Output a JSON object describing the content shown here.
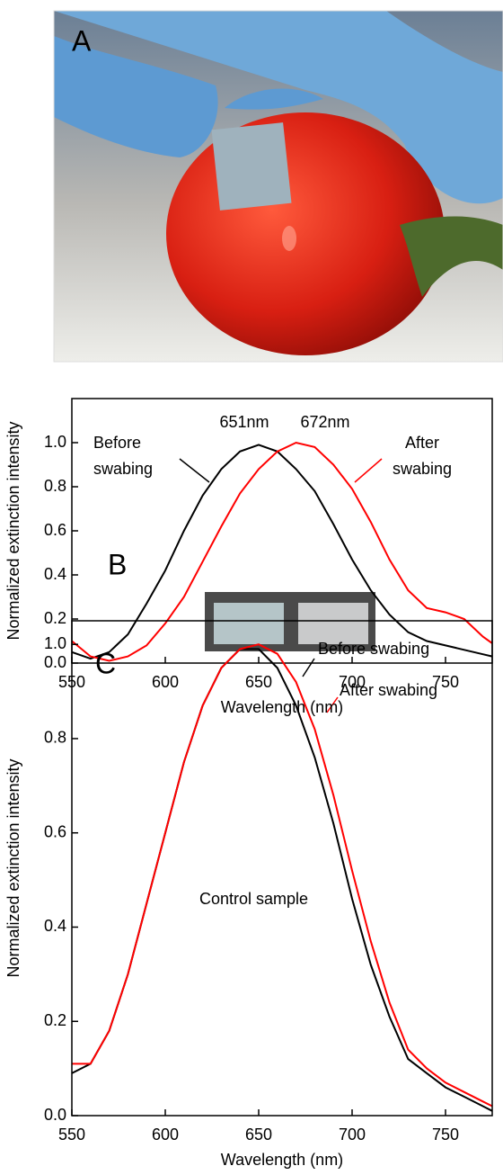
{
  "photo": {
    "label": "A"
  },
  "chart_data": [
    {
      "type": "line",
      "panel_label": "B",
      "xlabel": "Wavelength (nm)",
      "ylabel": "Normalized extinction intensity",
      "x": [
        550,
        560,
        570,
        580,
        590,
        600,
        610,
        620,
        630,
        640,
        650,
        660,
        670,
        680,
        690,
        700,
        710,
        720,
        730,
        740,
        750,
        760,
        770,
        775
      ],
      "series": [
        {
          "name": "Before swabing",
          "color": "#000000",
          "values": [
            0.05,
            0.02,
            0.05,
            0.13,
            0.27,
            0.42,
            0.6,
            0.76,
            0.88,
            0.96,
            0.99,
            0.96,
            0.88,
            0.78,
            0.63,
            0.47,
            0.33,
            0.22,
            0.14,
            0.1,
            0.08,
            0.06,
            0.04,
            0.03
          ]
        },
        {
          "name": "After swabing",
          "color": "#ff0000",
          "values": [
            0.1,
            0.03,
            0.01,
            0.03,
            0.08,
            0.18,
            0.3,
            0.46,
            0.62,
            0.77,
            0.88,
            0.96,
            1.0,
            0.98,
            0.9,
            0.79,
            0.64,
            0.47,
            0.33,
            0.25,
            0.23,
            0.2,
            0.12,
            0.09
          ]
        }
      ],
      "annotations": [
        {
          "text": "651nm",
          "color": "#000000"
        },
        {
          "text": "672nm",
          "color": "#ff0000"
        },
        {
          "text": "Before",
          "color": "#000000"
        },
        {
          "text": "swabing",
          "color": "#000000"
        },
        {
          "text": "After",
          "color": "#ff0000"
        },
        {
          "text": "swabing",
          "color": "#ff0000"
        }
      ],
      "xlim": [
        550,
        775
      ],
      "xticks": [
        550,
        600,
        650,
        700,
        750
      ],
      "ylim": [
        0,
        1.2
      ],
      "yticks": [
        {
          "value": 0,
          "label": "0.0"
        },
        0.2,
        0.4,
        0.6,
        0.8,
        {
          "value": 1,
          "label": "1.0"
        }
      ]
    },
    {
      "type": "line",
      "panel_label": "C",
      "xlabel": "Wavelength (nm)",
      "ylabel": "Normalized extinction intensity",
      "x": [
        550,
        560,
        570,
        580,
        590,
        600,
        610,
        620,
        630,
        640,
        650,
        660,
        670,
        680,
        690,
        700,
        710,
        720,
        730,
        740,
        750,
        760,
        770,
        775
      ],
      "series": [
        {
          "name": "Before swabing",
          "color": "#000000",
          "values": [
            0.09,
            0.11,
            0.18,
            0.3,
            0.45,
            0.6,
            0.75,
            0.87,
            0.95,
            0.99,
            0.99,
            0.95,
            0.87,
            0.76,
            0.62,
            0.46,
            0.32,
            0.21,
            0.12,
            0.09,
            0.06,
            0.04,
            0.02,
            0.01
          ]
        },
        {
          "name": "After swabing",
          "color": "#ff0000",
          "values": [
            0.11,
            0.11,
            0.18,
            0.3,
            0.45,
            0.6,
            0.75,
            0.87,
            0.95,
            0.99,
            1.0,
            0.98,
            0.92,
            0.82,
            0.68,
            0.52,
            0.37,
            0.24,
            0.14,
            0.1,
            0.07,
            0.05,
            0.03,
            0.02
          ]
        }
      ],
      "annotations": [
        {
          "text": "Before swabing",
          "color": "#000000"
        },
        {
          "text": "After swabing",
          "color": "#ff0000"
        },
        {
          "text": "Control sample",
          "color": "#000000"
        }
      ],
      "xlim": [
        550,
        775
      ],
      "xticks": [
        550,
        600,
        650,
        700,
        750
      ],
      "ylim": [
        0,
        1.05
      ],
      "yticks": [
        {
          "value": 0,
          "label": "0.0"
        },
        0.2,
        0.4,
        0.6,
        0.8,
        {
          "value": 1,
          "label": "1.0"
        }
      ]
    }
  ]
}
